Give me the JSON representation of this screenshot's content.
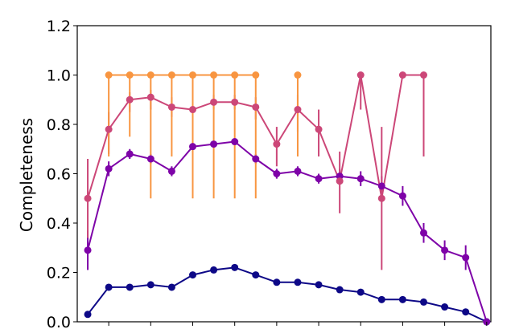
{
  "chart_data": {
    "type": "line",
    "title": "",
    "xlabel": "",
    "ylabel": "Completeness",
    "ylim": [
      0.0,
      1.2
    ],
    "xlim": [
      0.5,
      20.2
    ],
    "yticks": [
      0.0,
      0.2,
      0.4,
      0.6,
      0.8,
      1.0,
      1.2
    ],
    "ytick_labels": [
      "0.0",
      "0.2",
      "0.4",
      "0.6",
      "0.8",
      "1.0",
      "1.2"
    ],
    "xticks": [
      2,
      4,
      6,
      8,
      10,
      12,
      14,
      16,
      18,
      20
    ],
    "grid": false,
    "legend": "none",
    "series": [
      {
        "color": "#0d0887",
        "x": [
          1,
          2,
          3,
          4,
          5,
          6,
          7,
          8,
          9,
          10,
          11,
          12,
          13,
          14,
          15,
          16,
          17,
          18,
          19,
          20
        ],
        "y": [
          0.03,
          0.14,
          0.14,
          0.15,
          0.14,
          0.19,
          0.21,
          0.22,
          0.19,
          0.16,
          0.16,
          0.15,
          0.13,
          0.12,
          0.09,
          0.09,
          0.08,
          0.06,
          0.04,
          0.0
        ],
        "err_low": [
          0.01,
          0.01,
          0.01,
          0.01,
          0.01,
          0.01,
          0.01,
          0.01,
          0.01,
          0.01,
          0.01,
          0.01,
          0.01,
          0.01,
          0.01,
          0.01,
          0.01,
          0.01,
          0.01,
          0.0
        ],
        "err_high": [
          0.01,
          0.01,
          0.01,
          0.01,
          0.01,
          0.01,
          0.01,
          0.01,
          0.01,
          0.01,
          0.01,
          0.01,
          0.01,
          0.01,
          0.01,
          0.01,
          0.01,
          0.01,
          0.01,
          0.0
        ]
      },
      {
        "color": "#7e03a8",
        "x": [
          1,
          2,
          3,
          4,
          5,
          6,
          7,
          8,
          9,
          10,
          11,
          12,
          13,
          14,
          15,
          16,
          17,
          18,
          19,
          20
        ],
        "y": [
          0.29,
          0.62,
          0.68,
          0.66,
          0.61,
          0.71,
          0.72,
          0.73,
          0.66,
          0.6,
          0.61,
          0.58,
          0.59,
          0.58,
          0.55,
          0.51,
          0.36,
          0.29,
          0.26,
          0.0
        ],
        "err_low": [
          0.08,
          0.03,
          0.02,
          0.02,
          0.02,
          0.01,
          0.01,
          0.01,
          0.02,
          0.02,
          0.02,
          0.02,
          0.03,
          0.03,
          0.04,
          0.04,
          0.04,
          0.04,
          0.05,
          0.0
        ],
        "err_high": [
          0.08,
          0.03,
          0.02,
          0.02,
          0.02,
          0.01,
          0.01,
          0.01,
          0.02,
          0.02,
          0.02,
          0.02,
          0.03,
          0.03,
          0.04,
          0.04,
          0.04,
          0.04,
          0.05,
          0.0
        ]
      },
      {
        "color": "#cc4778",
        "x": [
          1,
          2,
          3,
          4,
          5,
          6,
          7,
          8,
          9,
          10,
          11,
          12,
          13,
          14,
          15,
          16,
          17
        ],
        "y": [
          0.5,
          0.78,
          0.9,
          0.91,
          0.87,
          0.86,
          0.89,
          0.89,
          0.87,
          0.72,
          0.86,
          0.78,
          0.57,
          1.0,
          0.5,
          1.0,
          1.0
        ],
        "err_low": [
          0.16,
          0.1,
          0.05,
          0.05,
          0.04,
          0.04,
          0.03,
          0.03,
          0.05,
          0.09,
          0.09,
          0.11,
          0.13,
          0.14,
          0.29,
          0.0,
          0.33
        ],
        "err_high": [
          0.16,
          0.07,
          0.03,
          0.03,
          0.04,
          0.04,
          0.03,
          0.03,
          0.04,
          0.07,
          0.06,
          0.08,
          0.12,
          0.0,
          0.29,
          0.0,
          0.0
        ]
      },
      {
        "color": "#f89540",
        "x": [
          2,
          3,
          4,
          5,
          6,
          7,
          8,
          9,
          11
        ],
        "y": [
          1.0,
          1.0,
          1.0,
          1.0,
          1.0,
          1.0,
          1.0,
          1.0,
          1.0
        ],
        "err_low": [
          0.33,
          0.25,
          0.5,
          0.33,
          0.5,
          0.5,
          0.5,
          0.5,
          0.33
        ],
        "err_high": [
          0.0,
          0.0,
          0.0,
          0.0,
          0.0,
          0.0,
          0.0,
          0.0,
          0.0
        ],
        "segments": [
          [
            2,
            9
          ],
          [
            11,
            11
          ]
        ]
      }
    ]
  }
}
